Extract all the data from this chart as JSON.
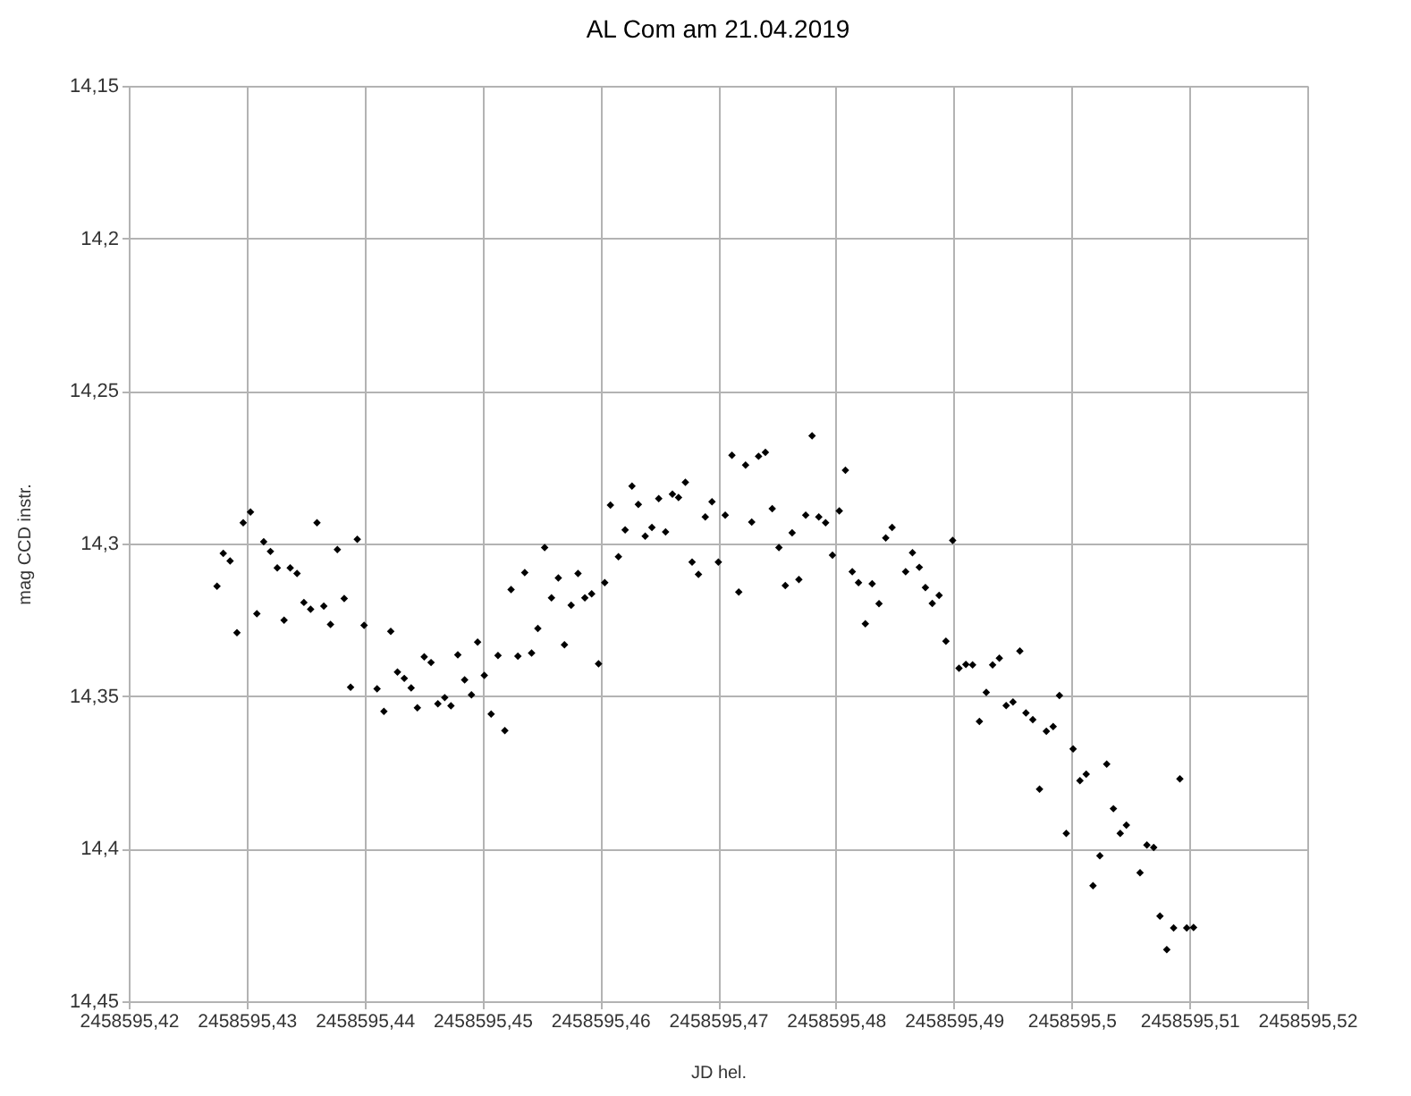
{
  "chart_data": {
    "type": "scatter",
    "title": "AL Com am 21.04.2019",
    "xlabel": "JD hel.",
    "ylabel": "mag CCD instr.",
    "x": [
      2458595.42749,
      2458595.42802,
      2458595.4286,
      2458595.42918,
      2458595.42971,
      2458595.43033,
      2458595.43087,
      2458595.43145,
      2458595.43202,
      2458595.4326,
      2458595.43318,
      2458595.4337,
      2458595.43428,
      2458595.43486,
      2458595.43543,
      2458595.43597,
      2458595.43655,
      2458595.43712,
      2458595.4377,
      2458595.43828,
      2458595.43882,
      2458595.43939,
      2458595.43997,
      2458595.44107,
      2458595.44165,
      2458595.44223,
      2458595.4428,
      2458595.44338,
      2458595.44396,
      2458595.44449,
      2458595.44507,
      2458595.44565,
      2458595.44623,
      2458595.44681,
      2458595.44734,
      2458595.44792,
      2458595.4485,
      2458595.44908,
      2458595.4496,
      2458595.45017,
      2458595.45075,
      2458595.45133,
      2458595.45191,
      2458595.45244,
      2458595.45302,
      2458595.4536,
      2458595.45418,
      2458595.45471,
      2458595.45529,
      2458595.45587,
      2458595.45645,
      2458595.45697,
      2458595.45754,
      2458595.45812,
      2458595.4587,
      2458595.45928,
      2458595.45986,
      2458595.46039,
      2458595.46087,
      2458595.46155,
      2458595.46212,
      2458595.4627,
      2458595.46324,
      2458595.46382,
      2458595.46439,
      2458595.46497,
      2458595.46555,
      2458595.46613,
      2458595.46665,
      2458595.46723,
      2458595.4678,
      2458595.46834,
      2458595.46892,
      2458595.46949,
      2458595.47003,
      2458595.47061,
      2458595.47118,
      2458595.47176,
      2458595.47234,
      2458595.47286,
      2458595.47344,
      2458595.47402,
      2458595.4746,
      2458595.47517,
      2458595.47571,
      2458595.47629,
      2458595.47686,
      2458595.47744,
      2458595.47798,
      2458595.47855,
      2458595.47913,
      2458595.47971,
      2458595.48029,
      2458595.48081,
      2458595.48139,
      2458595.48192,
      2458595.4825,
      2458595.48308,
      2458595.48366,
      2458595.48423,
      2458595.48477,
      2458595.48592,
      2458595.4865,
      2458595.48708,
      2458595.4876,
      2458595.48818,
      2458595.48876,
      2458595.48934,
      2458595.48991,
      2458595.49045,
      2458595.49103,
      2458595.4916,
      2458595.49218,
      2458595.49276,
      2458595.4933,
      2458595.49387,
      2458595.49445,
      2458595.49503,
      2458595.49561,
      2458595.49613,
      2458595.49671,
      2458595.49728,
      2458595.49786,
      2458595.49844,
      2458595.49897,
      2458595.49955,
      2458595.50013,
      2458595.50071,
      2458595.50124,
      2458595.50182,
      2458595.5024,
      2458595.50298,
      2458595.50355,
      2458595.50413,
      2458595.50465,
      2458595.50581,
      2458595.50639,
      2458595.50697,
      2458595.5075,
      2458595.50808,
      2458595.50866,
      2458595.50919,
      2458595.50977,
      2458595.51035
    ],
    "series": [
      {
        "color": "#000000",
        "values": [
          14.314,
          14.3032,
          14.3057,
          14.3292,
          14.2932,
          14.2897,
          14.323,
          14.2994,
          14.3026,
          14.308,
          14.3251,
          14.308,
          14.3098,
          14.3193,
          14.3215,
          14.2932,
          14.3205,
          14.3265,
          14.302,
          14.318,
          14.3471,
          14.2986,
          14.3268,
          14.3476,
          14.355,
          14.3288,
          14.3421,
          14.3442,
          14.3473,
          14.3538,
          14.3371,
          14.339,
          14.3525,
          14.3505,
          14.3532,
          14.3365,
          14.3447,
          14.3496,
          14.3323,
          14.3432,
          14.3559,
          14.3367,
          14.3613,
          14.3151,
          14.3369,
          14.3095,
          14.3359,
          14.3278,
          14.3013,
          14.3178,
          14.3113,
          14.3332,
          14.3202,
          14.3098,
          14.3178,
          14.3165,
          14.3394,
          14.3128,
          14.2874,
          14.3043,
          14.2955,
          14.2812,
          14.2872,
          14.2976,
          14.2947,
          14.2853,
          14.2962,
          14.2838,
          14.2849,
          14.2799,
          14.3061,
          14.3101,
          14.2913,
          14.2863,
          14.3061,
          14.2907,
          14.2711,
          14.3159,
          14.2743,
          14.293,
          14.2714,
          14.2701,
          14.2886,
          14.3013,
          14.3138,
          14.2965,
          14.3118,
          14.2907,
          14.2647,
          14.2913,
          14.2932,
          14.3038,
          14.2893,
          14.276,
          14.3092,
          14.3128,
          14.3263,
          14.3132,
          14.3197,
          14.2982,
          14.2947,
          14.3092,
          14.303,
          14.3078,
          14.3144,
          14.3196,
          14.317,
          14.332,
          14.299,
          14.3409,
          14.3396,
          14.3398,
          14.3583,
          14.3488,
          14.3398,
          14.3376,
          14.3531,
          14.3519,
          14.3352,
          14.3555,
          14.3577,
          14.3805,
          14.3615,
          14.36,
          14.3498,
          14.395,
          14.3673,
          14.3777,
          14.3756,
          14.4121,
          14.4023,
          14.3723,
          14.3869,
          14.395,
          14.3923,
          14.4079,
          14.3988,
          14.3996,
          14.4221,
          14.4331,
          14.426,
          14.3771,
          14.426,
          14.4258
        ]
      }
    ],
    "xlim": [
      2458595.42,
      2458595.52
    ],
    "xticks": [
      {
        "value": 2458595.42,
        "label": "2458595,42"
      },
      {
        "value": 2458595.43,
        "label": "2458595,43"
      },
      {
        "value": 2458595.44,
        "label": "2458595,44"
      },
      {
        "value": 2458595.45,
        "label": "2458595,45"
      },
      {
        "value": 2458595.46,
        "label": "2458595,46"
      },
      {
        "value": 2458595.47,
        "label": "2458595,47"
      },
      {
        "value": 2458595.48,
        "label": "2458595,48"
      },
      {
        "value": 2458595.49,
        "label": "2458595,49"
      },
      {
        "value": 2458595.5,
        "label": "2458595,5"
      },
      {
        "value": 2458595.51,
        "label": "2458595,51"
      },
      {
        "value": 2458595.52,
        "label": "2458595,52"
      }
    ],
    "ylim": [
      14.45,
      14.15
    ],
    "yticks": [
      {
        "value": 14.15,
        "label": "14,15"
      },
      {
        "value": 14.2,
        "label": "14,2"
      },
      {
        "value": 14.25,
        "label": "14,25"
      },
      {
        "value": 14.3,
        "label": "14,3"
      },
      {
        "value": 14.35,
        "label": "14,35"
      },
      {
        "value": 14.4,
        "label": "14,4"
      },
      {
        "value": 14.45,
        "label": "14,45"
      }
    ],
    "grid": true,
    "marker": "diamond"
  }
}
